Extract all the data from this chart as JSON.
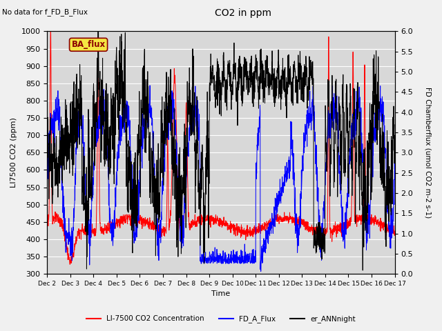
{
  "title": "CO2 in ppm",
  "top_left_text": "No data for f_FD_B_Flux",
  "ba_flux_label": "BA_flux",
  "xlabel": "Time",
  "ylabel_left": "LI7500 CO2 (ppm)",
  "ylabel_right": "FD Chamberflux (umol CO2 m-2 s-1)",
  "ylim_left": [
    300,
    1000
  ],
  "ylim_right": [
    0.0,
    6.0
  ],
  "yticks_left": [
    300,
    350,
    400,
    450,
    500,
    550,
    600,
    650,
    700,
    750,
    800,
    850,
    900,
    950,
    1000
  ],
  "yticks_right": [
    0.0,
    0.5,
    1.0,
    1.5,
    2.0,
    2.5,
    3.0,
    3.5,
    4.0,
    4.5,
    5.0,
    5.5,
    6.0
  ],
  "xtick_labels": [
    "Dec 2",
    "Dec 3",
    "Dec 4",
    "Dec 5",
    "Dec 6",
    "Dec 7",
    "Dec 8",
    "Dec 9",
    "Dec 10",
    "Dec 11",
    "Dec 12",
    "Dec 13",
    "Dec 14",
    "Dec 15",
    "Dec 16",
    "Dec 17"
  ],
  "line_colors": {
    "red": "#ff0000",
    "blue": "#0000ff",
    "black": "#000000"
  },
  "legend_labels": [
    "LI-7500 CO2 Concentration",
    "FD_A_Flux",
    "er_ANNnight"
  ],
  "background_color": "#d8d8d8",
  "ba_flux_box_facecolor": "#f5e642",
  "ba_flux_box_edgecolor": "#8B0000",
  "grid_color": "#ffffff",
  "fig_facecolor": "#f0f0f0",
  "n_points": 2000,
  "figsize": [
    6.4,
    4.8
  ],
  "dpi": 100
}
